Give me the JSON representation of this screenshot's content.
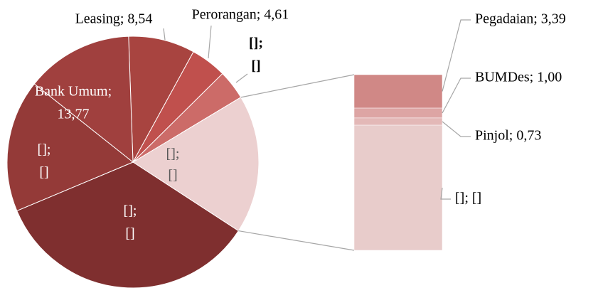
{
  "chart_data": {
    "type": "pie-of-bar",
    "pie": {
      "labels": [
        [
          "Leasing; 8,54"
        ],
        [
          "Perorangan; 4,61"
        ],
        [
          "[];",
          "[]"
        ],
        [
          "[];",
          "[]"
        ],
        [
          "[];",
          "[]"
        ],
        [
          "Bank Umum;",
          "13,77"
        ]
      ],
      "values": [
        8.54,
        4.61,
        3.8,
        34.5,
        17.0,
        13.77
      ],
      "colors": [
        "#a84440",
        "#c0504d",
        "#cc6b68",
        "#7f2f2f",
        "#943a38",
        "#a0403e"
      ]
    },
    "other": {
      "label": [
        "[];",
        "[]"
      ],
      "color": "#ecd0d0"
    },
    "bar": {
      "labels": [
        "Pegadaian; 3,39",
        "BUMDes; 1,00",
        "Pinjol; 0,73",
        "[]; []"
      ],
      "values": [
        3.39,
        1.0,
        0.73,
        12.68
      ],
      "colors": [
        "#d08886",
        "#dda5a4",
        "#e3b8b7",
        "#e8cccb"
      ]
    }
  }
}
